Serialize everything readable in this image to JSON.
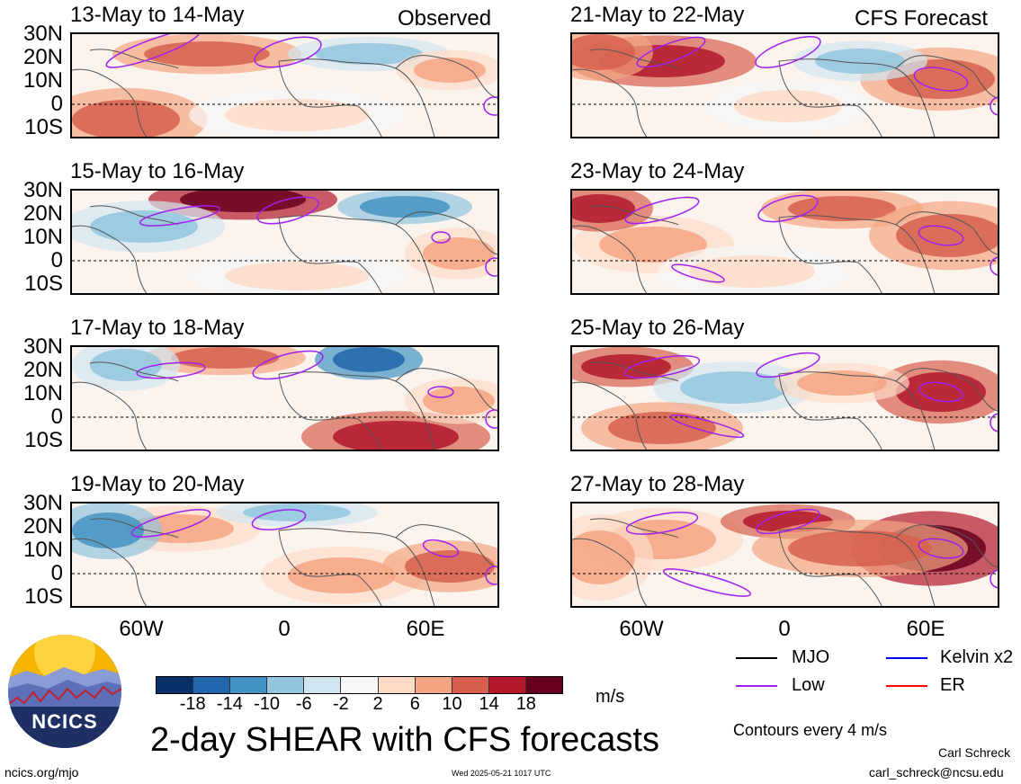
{
  "headers": {
    "observed_label": "Observed",
    "forecast_label": "CFS Forecast"
  },
  "panels": [
    {
      "title": "13-May to 14-May",
      "column": "observed"
    },
    {
      "title": "15-May to 16-May",
      "column": "observed"
    },
    {
      "title": "17-May to 18-May",
      "column": "observed"
    },
    {
      "title": "19-May to 20-May",
      "column": "observed"
    },
    {
      "title": "21-May to 22-May",
      "column": "forecast"
    },
    {
      "title": "23-May to 24-May",
      "column": "forecast"
    },
    {
      "title": "25-May to 26-May",
      "column": "forecast"
    },
    {
      "title": "27-May to 28-May",
      "column": "forecast"
    }
  ],
  "lat_labels": [
    "30N",
    "20N",
    "10N",
    "0",
    "10S"
  ],
  "lon_labels": [
    "60W",
    "0",
    "60E"
  ],
  "colorbar": {
    "ticks": [
      "-18",
      "-14",
      "-10",
      "-6",
      "-2",
      "2",
      "6",
      "10",
      "14",
      "18"
    ],
    "colors": [
      "#08306b",
      "#2166ac",
      "#4393c3",
      "#92c5de",
      "#d1e5f0",
      "#f7f7f7",
      "#fddbc7",
      "#f4a582",
      "#d6604d",
      "#b2182b",
      "#67001f"
    ],
    "units": "m/s"
  },
  "legend": {
    "items": [
      {
        "label": "MJO",
        "color": "#000000"
      },
      {
        "label": "Kelvin x2",
        "color": "#0000ff"
      },
      {
        "label": "Low",
        "color": "#a020f0"
      },
      {
        "label": "ER",
        "color": "#ff0000"
      }
    ],
    "contours_note": "Contours every 4 m/s"
  },
  "main_title": "2-day SHEAR with CFS forecasts",
  "footer": {
    "url": "ncics.org/mjo",
    "timestamp": "Wed 2025-05-21 1017 UTC",
    "author": "Carl Schreck",
    "email": "carl_schreck@ncsu.edu",
    "logo_text": "NCICS"
  },
  "chart_data": {
    "type": "heatmap",
    "variable": "2-day SHEAR",
    "units": "m/s",
    "color_levels": [
      -18,
      -14,
      -10,
      -6,
      -2,
      2,
      6,
      10,
      14,
      18
    ],
    "lat_ticks": [
      "30N",
      "20N",
      "10N",
      "0",
      "10S"
    ],
    "lon_ticks": [
      "60W",
      "0",
      "60E"
    ],
    "contour_interval_note": "Contours every 4 m/s",
    "contour_types": [
      "MJO",
      "Kelvin x2",
      "Low",
      "ER"
    ]
  }
}
